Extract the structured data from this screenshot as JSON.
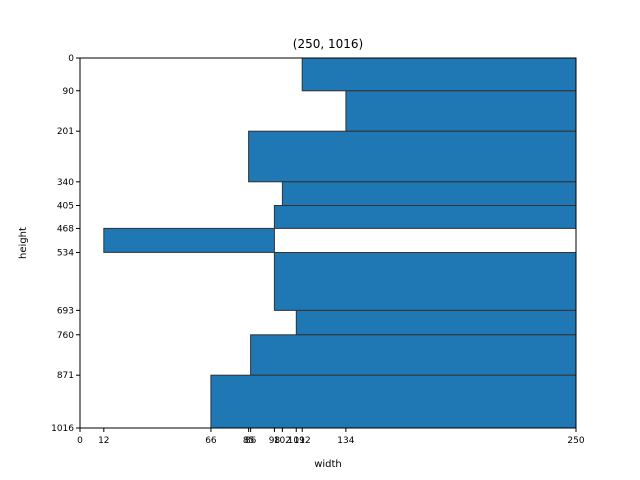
{
  "chart_data": {
    "type": "bar",
    "orientation": "horizontal",
    "title": "(250, 1016)",
    "xlabel": "width",
    "ylabel": "height",
    "xlim": [
      0,
      250
    ],
    "ylim": [
      0,
      1016
    ],
    "bars": [
      {
        "y0": 0,
        "y1": 90,
        "x0": 112,
        "x1": 250
      },
      {
        "y0": 90,
        "y1": 201,
        "x0": 134,
        "x1": 250
      },
      {
        "y0": 201,
        "y1": 340,
        "x0": 85,
        "x1": 250
      },
      {
        "y0": 340,
        "y1": 405,
        "x0": 102,
        "x1": 250
      },
      {
        "y0": 405,
        "y1": 468,
        "x0": 98,
        "x1": 250
      },
      {
        "y0": 468,
        "y1": 534,
        "x0": 12,
        "x1": 98
      },
      {
        "y0": 534,
        "y1": 693,
        "x0": 98,
        "x1": 250
      },
      {
        "y0": 693,
        "y1": 760,
        "x0": 109,
        "x1": 250
      },
      {
        "y0": 760,
        "y1": 871,
        "x0": 86,
        "x1": 250
      },
      {
        "y0": 871,
        "y1": 1016,
        "x0": 66,
        "x1": 250
      }
    ],
    "colors": {
      "bar_fill": "#1f77b4",
      "bar_edge": "#333333",
      "axis": "#000000"
    },
    "grid": false,
    "legend": "none"
  }
}
